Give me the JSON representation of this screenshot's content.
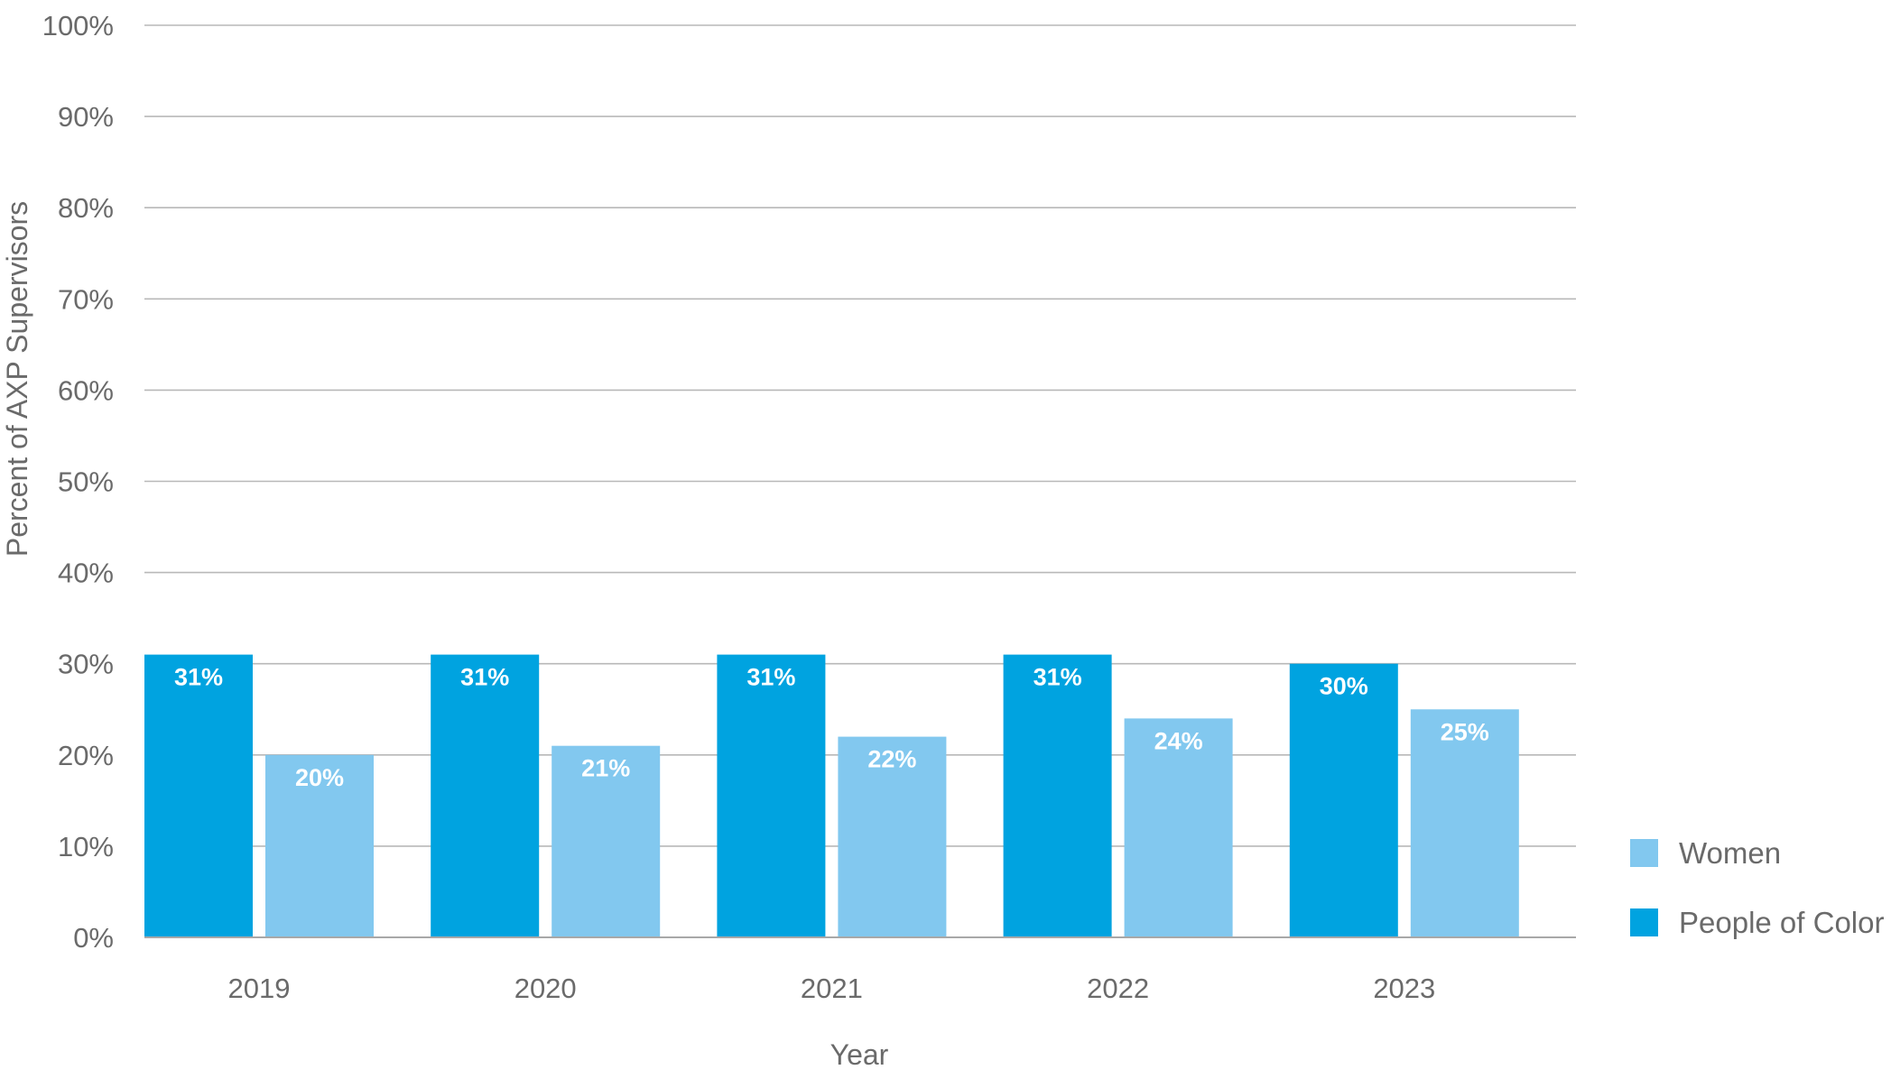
{
  "chart_data": {
    "type": "bar",
    "title": "",
    "xlabel": "Year",
    "ylabel": "Percent of AXP Supervisors",
    "categories": [
      "2019",
      "2020",
      "2021",
      "2022",
      "2023"
    ],
    "series": [
      {
        "name": "People of Color",
        "color": "#00a3e0",
        "values": [
          31,
          31,
          31,
          31,
          30
        ],
        "labels": [
          "31%",
          "31%",
          "31%",
          "31%",
          "30%"
        ]
      },
      {
        "name": "Women",
        "color": "#82c8ef",
        "values": [
          20,
          21,
          22,
          24,
          25
        ],
        "labels": [
          "20%",
          "21%",
          "22%",
          "24%",
          "25%"
        ]
      }
    ],
    "ylim": [
      0,
      100
    ],
    "yticks": [
      0,
      10,
      20,
      30,
      40,
      50,
      60,
      70,
      80,
      90,
      100
    ],
    "ytick_labels": [
      "0%",
      "10%",
      "20%",
      "30%",
      "40%",
      "50%",
      "60%",
      "70%",
      "80%",
      "90%",
      "100%"
    ],
    "grid": true,
    "legend": {
      "placement": "bottom-right",
      "order": [
        "Women",
        "People of Color"
      ]
    }
  }
}
